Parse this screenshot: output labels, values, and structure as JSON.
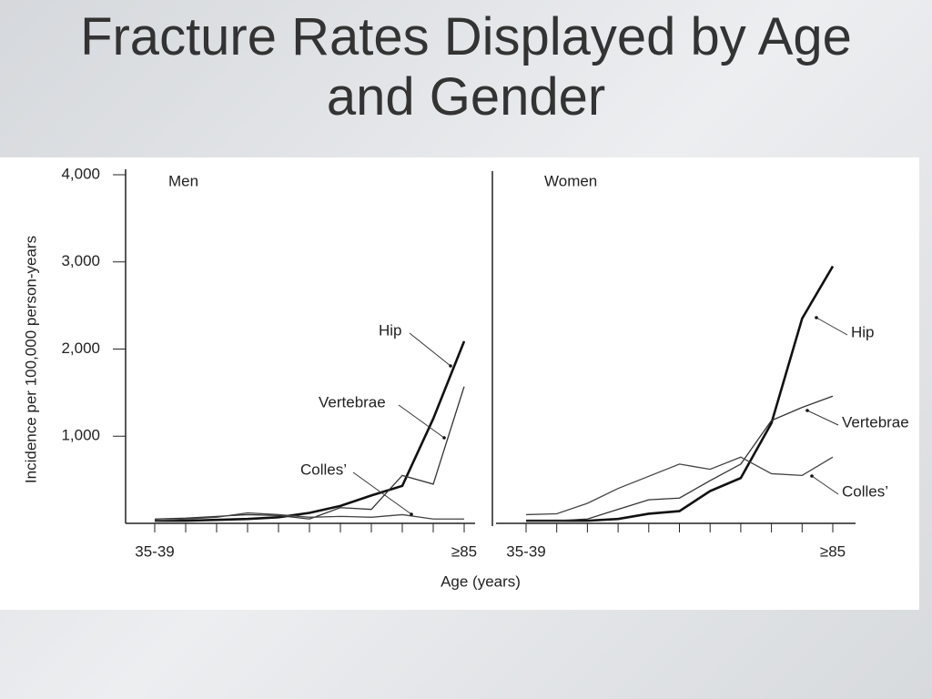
{
  "title": "Fracture Rates Displayed by Age and Gender",
  "y_label": "Incidence per 100,000 person-years",
  "x_label": "Age (years)",
  "chart_data": [
    {
      "type": "line",
      "title": "Men",
      "categories": [
        "35-39",
        null,
        null,
        null,
        null,
        null,
        null,
        null,
        null,
        null,
        "≥85"
      ],
      "ylim": [
        0,
        4000
      ],
      "yticks": [
        {
          "value": 1000,
          "label": "1,000"
        },
        {
          "value": 2000,
          "label": "2,000"
        },
        {
          "value": 3000,
          "label": "3,000"
        },
        {
          "value": 4000,
          "label": "4,000"
        }
      ],
      "series": [
        {
          "name": "Hip",
          "color": "#111111",
          "values": [
            30,
            30,
            40,
            50,
            70,
            120,
            200,
            320,
            430,
            1200,
            2090
          ]
        },
        {
          "name": "Vertebrae",
          "color": "#333333",
          "values": [
            50,
            60,
            80,
            100,
            90,
            50,
            180,
            160,
            550,
            450,
            1570
          ]
        },
        {
          "name": "Colles’",
          "color": "#444444",
          "values": [
            30,
            50,
            70,
            120,
            100,
            70,
            80,
            70,
            100,
            50,
            50
          ]
        }
      ]
    },
    {
      "type": "line",
      "title": "Women",
      "categories": [
        "35-39",
        null,
        null,
        null,
        null,
        null,
        null,
        null,
        null,
        null,
        "≥85"
      ],
      "ylim": [
        0,
        4000
      ],
      "series": [
        {
          "name": "Hip",
          "color": "#111111",
          "values": [
            30,
            30,
            30,
            50,
            110,
            140,
            370,
            520,
            1150,
            2350,
            2950
          ]
        },
        {
          "name": "Vertebrae",
          "color": "#333333",
          "values": [
            30,
            30,
            50,
            160,
            270,
            290,
            490,
            680,
            1180,
            1330,
            1460
          ]
        },
        {
          "name": "Colles’",
          "color": "#444444",
          "values": [
            100,
            110,
            230,
            400,
            540,
            680,
            620,
            760,
            570,
            550,
            760
          ]
        }
      ]
    }
  ]
}
